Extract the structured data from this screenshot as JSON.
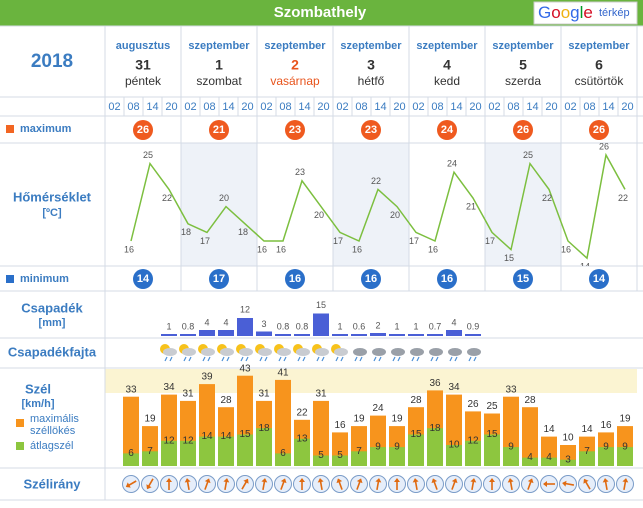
{
  "header": {
    "title": "Szombathely",
    "logo": "Google",
    "logo_suffix": "térkép"
  },
  "year": "2018",
  "days": [
    {
      "month": "augusztus",
      "day": "31",
      "weekday": "péntek"
    },
    {
      "month": "szeptember",
      "day": "1",
      "weekday": "szombat"
    },
    {
      "month": "szeptember",
      "day": "2",
      "weekday": "vasárnap"
    },
    {
      "month": "szeptember",
      "day": "3",
      "weekday": "hétfő"
    },
    {
      "month": "szeptember",
      "day": "4",
      "weekday": "kedd"
    },
    {
      "month": "szeptember",
      "day": "5",
      "weekday": "szerda"
    },
    {
      "month": "szeptember",
      "day": "6",
      "weekday": "csütörtök"
    }
  ],
  "hours": [
    "02",
    "08",
    "14",
    "20"
  ],
  "labels": {
    "maximum": "maximum",
    "temperature": "Hőmérséklet",
    "temperature_unit": "[ºC]",
    "minimum": "minimum",
    "precip": "Csapadék",
    "precip_unit": "[mm]",
    "precip_type": "Csapadékfajta",
    "wind": "Szél",
    "wind_unit": "[km/h]",
    "gust": "maximális",
    "gust2": "széllökés",
    "avg": "átlagszél",
    "wind_dir": "Szélirány"
  },
  "max": [
    26,
    21,
    23,
    23,
    24,
    26,
    26
  ],
  "min": [
    14,
    17,
    16,
    16,
    16,
    15,
    14
  ],
  "temperature": [
    16,
    25,
    22,
    18,
    17,
    20,
    18,
    16,
    16,
    23,
    20,
    17,
    16,
    22,
    20,
    17,
    16,
    24,
    21,
    17,
    15,
    25,
    22,
    16,
    14,
    26,
    22
  ],
  "precip": [
    null,
    null,
    1,
    0.8,
    4,
    4,
    12,
    3,
    0.8,
    0.8,
    15,
    1,
    0.6,
    2,
    1,
    1,
    0.7,
    4,
    0.9,
    null,
    null,
    null,
    null,
    null,
    null,
    null,
    null
  ],
  "gust": [
    33,
    19,
    34,
    31,
    39,
    28,
    43,
    31,
    41,
    22,
    31,
    16,
    19,
    24,
    19,
    28,
    36,
    34,
    26,
    25,
    33,
    28,
    14,
    10,
    14,
    16,
    19
  ],
  "avg": [
    6,
    7,
    12,
    12,
    14,
    14,
    15,
    18,
    6,
    13,
    5,
    5,
    7,
    9,
    9,
    15,
    18,
    10,
    12,
    15,
    9,
    4,
    4,
    3,
    7,
    9,
    9
  ],
  "wind_dir": [
    60,
    30,
    180,
    170,
    200,
    190,
    210,
    190,
    200,
    180,
    170,
    160,
    200,
    190,
    180,
    170,
    160,
    200,
    190,
    180,
    170,
    200,
    90,
    100,
    150,
    170,
    190
  ]
}
